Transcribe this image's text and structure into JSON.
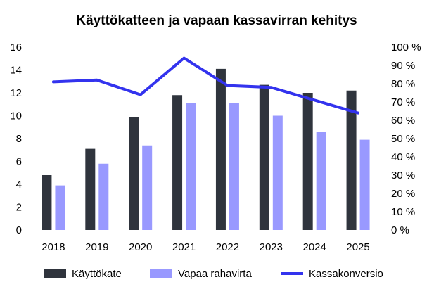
{
  "chart_data": {
    "type": "bar",
    "title": "Käyttökatteen ja vapaan kassavirran kehitys",
    "categories": [
      "2018",
      "2019",
      "2020",
      "2021",
      "2022",
      "2023",
      "2024",
      "2025"
    ],
    "series": [
      {
        "name": "Käyttökate",
        "type": "bar",
        "axis": "left",
        "color": "#2f343d",
        "values": [
          4.8,
          7.1,
          9.9,
          11.8,
          14.1,
          12.7,
          12.0,
          12.2
        ]
      },
      {
        "name": "Vapaa rahavirta",
        "type": "bar",
        "axis": "left",
        "color": "#9999ff",
        "values": [
          3.9,
          5.8,
          7.4,
          11.1,
          11.1,
          10.0,
          8.6,
          7.9
        ]
      },
      {
        "name": "Kassakonversio",
        "type": "line",
        "axis": "right",
        "color": "#3333ee",
        "values": [
          81,
          82,
          74,
          94,
          79,
          78,
          71,
          64
        ]
      }
    ],
    "y_left": {
      "min": 0,
      "max": 16,
      "ticks": [
        "0",
        "2",
        "4",
        "6",
        "8",
        "10",
        "12",
        "14",
        "16"
      ]
    },
    "y_right": {
      "min": 0,
      "max": 100,
      "ticks": [
        "0 %",
        "10 %",
        "20 %",
        "30 %",
        "40 %",
        "50 %",
        "60 %",
        "70 %",
        "80 %",
        "90 %",
        "100 %"
      ]
    },
    "grid": false,
    "legend_position": "bottom"
  }
}
